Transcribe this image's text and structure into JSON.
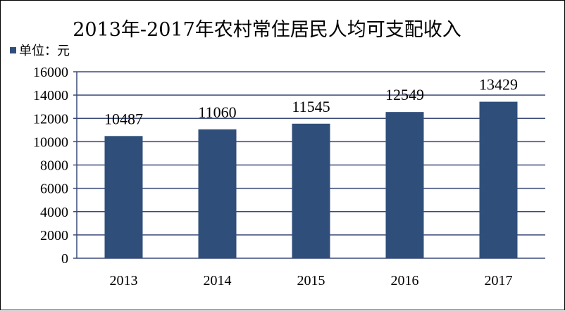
{
  "chart_data": {
    "type": "bar",
    "title": "2013年-2017年农村常住居民人均可支配收入",
    "legend_label": "单位：元",
    "legend_position": "top-left",
    "categories": [
      "2013",
      "2014",
      "2015",
      "2016",
      "2017"
    ],
    "values": [
      10487,
      11060,
      11545,
      12549,
      13429
    ],
    "value_labels": [
      "10487",
      "11060",
      "11545",
      "12549",
      "13429"
    ],
    "ylim": [
      0,
      16000
    ],
    "yticks": [
      "0",
      "2000",
      "4000",
      "6000",
      "8000",
      "10000",
      "12000",
      "14000",
      "16000"
    ],
    "xlabel": "",
    "ylabel": "",
    "grid": true,
    "bar_color": "#2f4f7a",
    "grid_color": "#3b4a78"
  }
}
